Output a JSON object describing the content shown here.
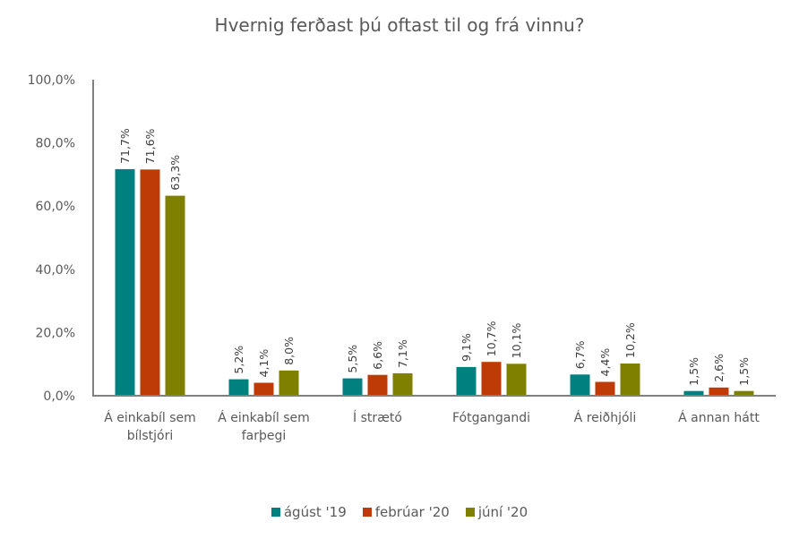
{
  "chart_data": {
    "type": "bar",
    "title": "Hvernig ferðast þú oftast til og frá vinnu?",
    "xlabel": "",
    "ylabel": "",
    "ylim": [
      0,
      100
    ],
    "yticks": [
      0,
      20,
      40,
      60,
      80,
      100
    ],
    "ytick_labels": [
      "0,0%",
      "20,0%",
      "40,0%",
      "60,0%",
      "80,0%",
      "100,0%"
    ],
    "grid": false,
    "legend_position": "bottom",
    "categories": [
      [
        "Á einkabíl sem",
        "bílstjóri"
      ],
      [
        "Á einkabíl sem",
        "farþegi"
      ],
      [
        "Í strætó"
      ],
      [
        "Fótgangandi"
      ],
      [
        "Á reiðhjóli"
      ],
      [
        "Á annan hátt"
      ]
    ],
    "series": [
      {
        "name": "ágúst '19",
        "color": "#00807F",
        "values": [
          71.7,
          5.2,
          5.5,
          9.1,
          6.7,
          1.5
        ],
        "labels": [
          "71,7%",
          "5,2%",
          "5,5%",
          "9,1%",
          "6,7%",
          "1,5%"
        ]
      },
      {
        "name": "febrúar '20",
        "color": "#BE3A06",
        "values": [
          71.6,
          4.1,
          6.6,
          10.7,
          4.4,
          2.6
        ],
        "labels": [
          "71,6%",
          "4,1%",
          "6,6%",
          "10,7%",
          "4,4%",
          "2,6%"
        ]
      },
      {
        "name": "júní '20",
        "color": "#808000",
        "values": [
          63.3,
          8.0,
          7.1,
          10.1,
          10.2,
          1.5
        ],
        "labels": [
          "63,3%",
          "8,0%",
          "7,1%",
          "10,1%",
          "10,2%",
          "1,5%"
        ]
      }
    ]
  }
}
